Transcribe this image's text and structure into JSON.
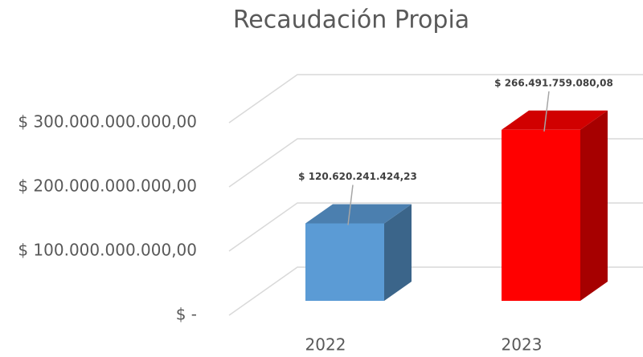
{
  "chart_data": {
    "type": "bar3d",
    "title": "Recaudación Propia",
    "categories": [
      "2022",
      "2023"
    ],
    "values": [
      120620241424.23,
      266491759080.08
    ],
    "value_labels": [
      "$ 120.620.241.424,23",
      "$ 266.491.759.080,08"
    ],
    "colors": [
      "#5b9bd5",
      "#ff0000"
    ],
    "ylim": [
      0,
      300000000000
    ],
    "yticks": [
      {
        "value": 0,
        "label": "$ -"
      },
      {
        "value": 100000000000,
        "label": "$ 100.000.000.000,00"
      },
      {
        "value": 200000000000,
        "label": "$ 200.000.000.000,00"
      },
      {
        "value": 300000000000,
        "label": "$ 300.000.000.000,00"
      }
    ],
    "grid": true
  }
}
